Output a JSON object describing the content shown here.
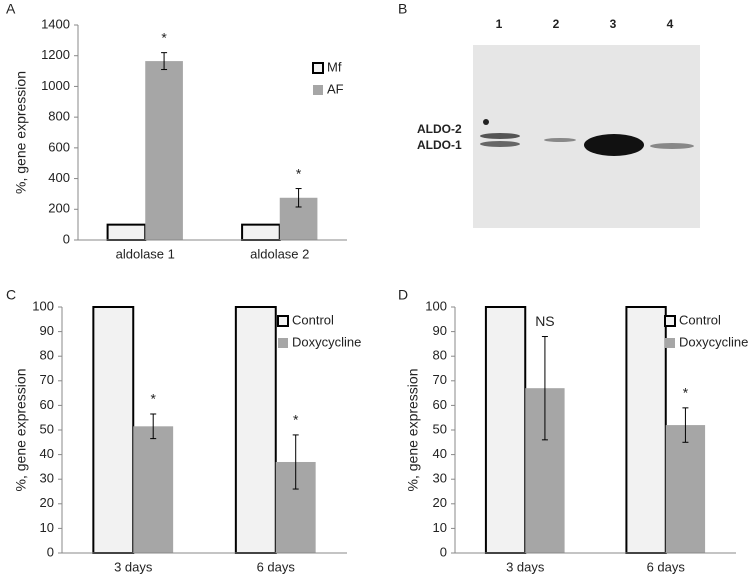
{
  "chart_data": [
    {
      "type": "bar",
      "panel": "A",
      "ylabel": "%, gene expression",
      "categories": [
        "aldolase 1",
        "aldolase 2"
      ],
      "series": [
        {
          "name": "Mf",
          "color": "#f2f2f2",
          "values": [
            100,
            100
          ]
        },
        {
          "name": "AF",
          "color": "#a6a6a6",
          "values": [
            1165,
            275
          ],
          "errors": [
            55,
            60
          ],
          "annotations": [
            "*",
            "*"
          ]
        }
      ],
      "ylim": [
        0,
        1400
      ],
      "yticks": [
        0,
        200,
        400,
        600,
        800,
        1000,
        1200,
        1400
      ]
    },
    {
      "type": "blot",
      "panel": "B",
      "lanes": [
        "1",
        "2",
        "3",
        "4"
      ],
      "bands": [
        "ALDO-2",
        "ALDO-1"
      ]
    },
    {
      "type": "bar",
      "panel": "C",
      "ylabel": "%, gene expression",
      "categories": [
        "3 days",
        "6 days"
      ],
      "series": [
        {
          "name": "Control",
          "color": "#f2f2f2",
          "values": [
            100,
            100
          ]
        },
        {
          "name": "Doxycycline",
          "color": "#a6a6a6",
          "values": [
            51.5,
            37
          ],
          "errors": [
            5,
            11
          ],
          "annotations": [
            "*",
            "*"
          ]
        }
      ],
      "ylim": [
        0,
        100
      ],
      "yticks": [
        0,
        10,
        20,
        30,
        40,
        50,
        60,
        70,
        80,
        90,
        100
      ]
    },
    {
      "type": "bar",
      "panel": "D",
      "ylabel": "%, gene expression",
      "categories": [
        "3 days",
        "6 days"
      ],
      "series": [
        {
          "name": "Control",
          "color": "#f2f2f2",
          "values": [
            100,
            100
          ]
        },
        {
          "name": "Doxycycline",
          "color": "#a6a6a6",
          "values": [
            67,
            52
          ],
          "errors": [
            21,
            7
          ],
          "annotations": [
            "NS",
            "*"
          ]
        }
      ],
      "ylim": [
        0,
        100
      ],
      "yticks": [
        0,
        10,
        20,
        30,
        40,
        50,
        60,
        70,
        80,
        90,
        100
      ]
    }
  ]
}
